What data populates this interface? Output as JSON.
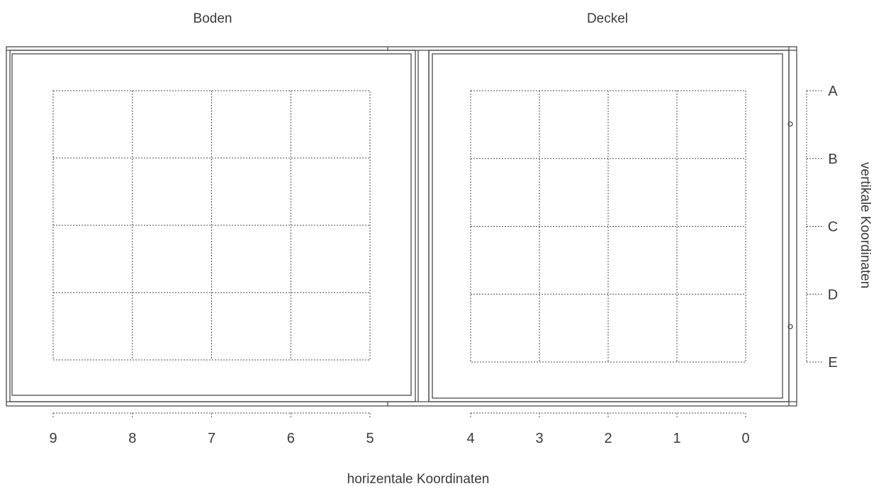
{
  "labels": {
    "boden": "Boden",
    "deckel": "Deckel",
    "horizontal_axis": "horizentale Koordinaten",
    "vertical_axis": "vertikale Koordinaten"
  },
  "horizontal_coordinates": {
    "boden": [
      "9",
      "8",
      "7",
      "6",
      "5"
    ],
    "deckel": [
      "4",
      "3",
      "2",
      "1",
      "0"
    ]
  },
  "vertical_coordinates": [
    "A",
    "B",
    "C",
    "D",
    "E"
  ],
  "grid": {
    "boden": {
      "columns": 4,
      "rows": 4
    },
    "deckel": {
      "columns": 4,
      "rows": 4
    }
  },
  "colors": {
    "line": "#4a4a4a",
    "text": "#3a3a3a",
    "background": "#ffffff"
  }
}
